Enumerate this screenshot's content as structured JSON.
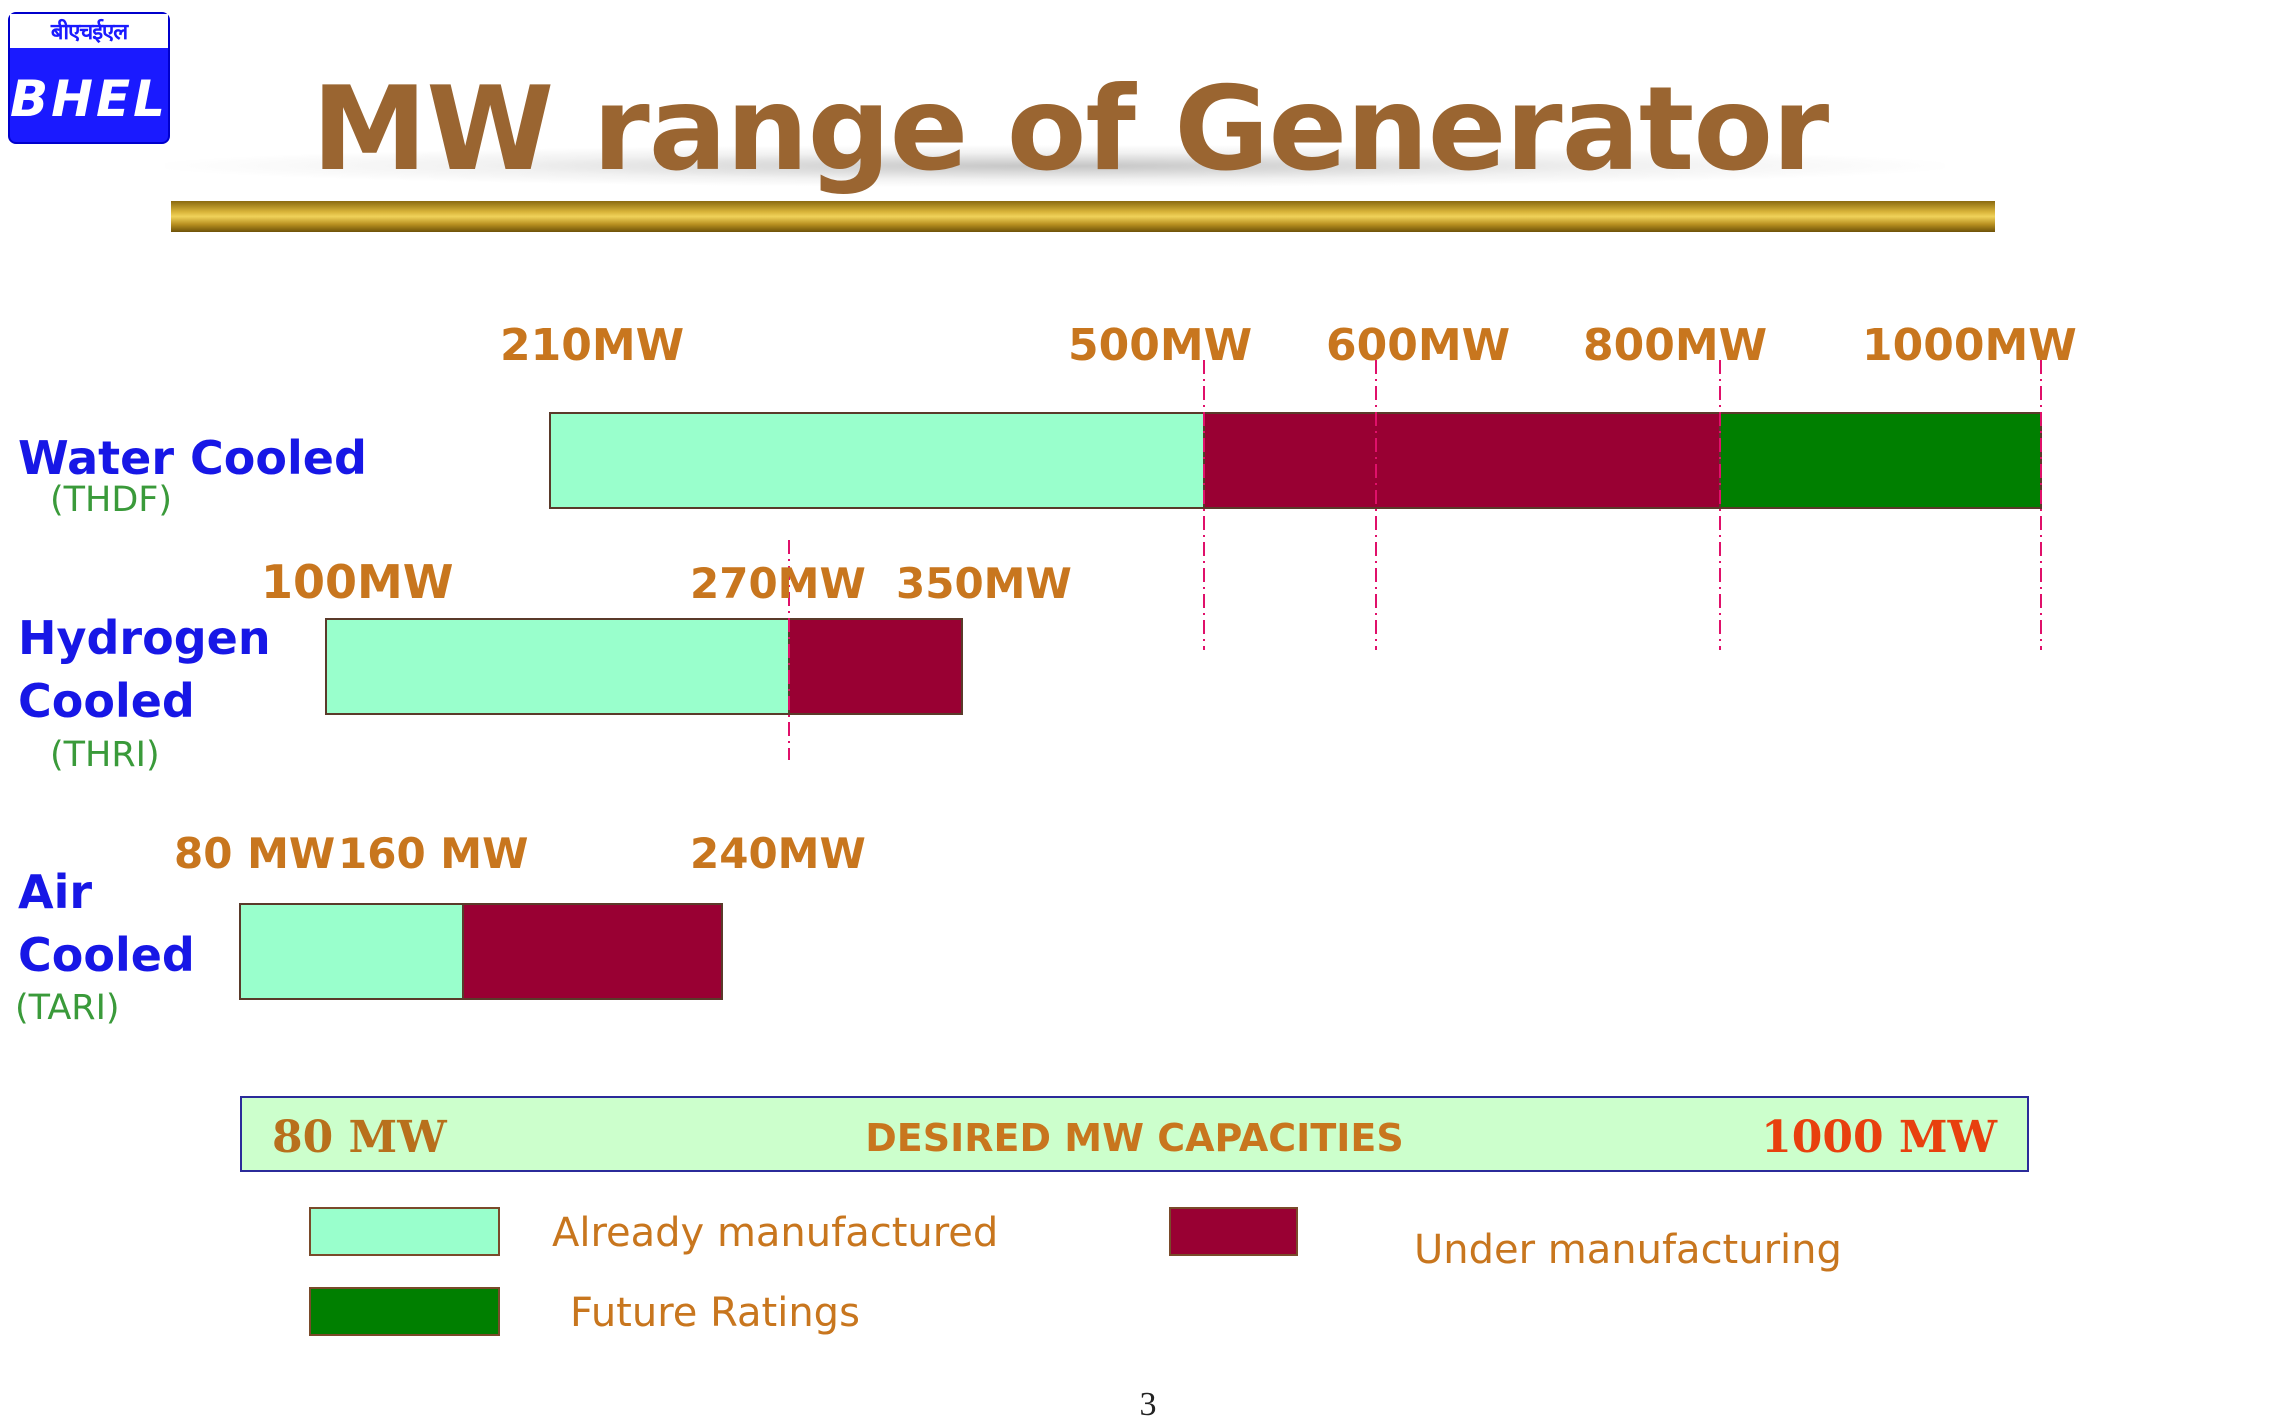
{
  "logo": {
    "hindi_text": "बीएचईएल",
    "brand_text": "BHEL"
  },
  "slide": {
    "title": "MW range of Generator",
    "page_number": "3"
  },
  "colors": {
    "already_manufactured": "#99ffcc",
    "under_manufacturing": "#990033",
    "future_ratings": "#007f00",
    "tick_text": "#c8761e",
    "row_label": "#1717e6",
    "row_sub": "#3a9a3a",
    "divider": "#e0106a"
  },
  "rows": {
    "water": {
      "line1": "Water Cooled",
      "sub": "(THDF)"
    },
    "hydrogen": {
      "line1": "Hydrogen",
      "line2": "Cooled",
      "sub": "(THRI)"
    },
    "air": {
      "line1": "Air",
      "line2": "Cooled",
      "sub": "(TARI)"
    }
  },
  "chart_data": {
    "type": "bar",
    "orientation": "horizontal",
    "stacked": true,
    "x_unit": "MW",
    "xlim": [
      80,
      1000
    ],
    "categories": [
      "Water Cooled (THDF)",
      "Hydrogen Cooled (THRI)",
      "Air Cooled (TARI)"
    ],
    "series": [
      {
        "name": "Already manufactured",
        "ranges": [
          [
            210,
            500
          ],
          [
            100,
            270
          ],
          [
            80,
            160
          ]
        ]
      },
      {
        "name": "Under manufacturing",
        "ranges": [
          [
            500,
            800
          ],
          [
            270,
            350
          ],
          [
            160,
            240
          ]
        ]
      },
      {
        "name": "Future Ratings",
        "ranges": [
          [
            800,
            1000
          ],
          null,
          null
        ]
      }
    ],
    "tick_labels": [
      [
        "210MW",
        "500MW",
        "600MW",
        "800MW",
        "1000MW"
      ],
      [
        "100MW",
        "270MW",
        "350MW"
      ],
      [
        "80 MW",
        "160 MW",
        "240MW"
      ]
    ],
    "divider_lines_mw": [
      500,
      600,
      800,
      1000,
      270
    ],
    "legend": {
      "already": "Already manufactured",
      "under": "Under manufacturing",
      "future": "Future Ratings"
    },
    "range_bar": {
      "left": "80 MW",
      "center": "DESIRED MW CAPACITIES",
      "right": "1000 MW"
    }
  }
}
